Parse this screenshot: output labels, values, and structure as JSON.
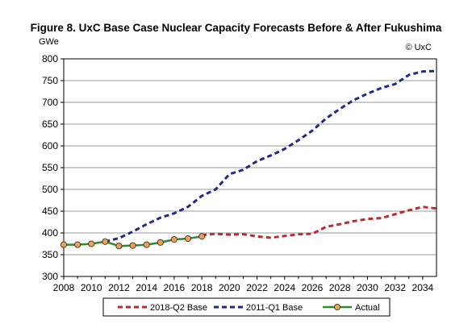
{
  "figure": {
    "title": "Figure 8. UxC Base Case Nuclear Capacity Forecasts Before & After Fukushima"
  },
  "chart_data": {
    "type": "line",
    "title": "Figure 8. UxC Base Case Nuclear Capacity Forecasts Before & After Fukushima",
    "ylabel": "GWe",
    "xlabel": "",
    "annotation": "© UxC",
    "xlim": [
      2008,
      2035
    ],
    "ylim": [
      300,
      800
    ],
    "x_ticks": [
      "2008",
      "2010",
      "2012",
      "2014",
      "2016",
      "2018",
      "2020",
      "2022",
      "2024",
      "2026",
      "2028",
      "2030",
      "2032",
      "2034"
    ],
    "y_ticks": [
      "300",
      "350",
      "400",
      "450",
      "500",
      "550",
      "600",
      "650",
      "700",
      "750",
      "800"
    ],
    "grid": "horizontal",
    "legend_position": "bottom",
    "series": [
      {
        "name": "2018-Q2 Base",
        "color": "#c0282d",
        "style": "dashed",
        "points": [
          [
            2018,
            395
          ],
          [
            2019,
            398
          ],
          [
            2020,
            396
          ],
          [
            2021,
            397
          ],
          [
            2022,
            392
          ],
          [
            2023,
            389
          ],
          [
            2024,
            393
          ],
          [
            2025,
            397
          ],
          [
            2026,
            398
          ],
          [
            2027,
            414
          ],
          [
            2028,
            420
          ],
          [
            2029,
            427
          ],
          [
            2030,
            432
          ],
          [
            2031,
            434
          ],
          [
            2032,
            443
          ],
          [
            2033,
            452
          ],
          [
            2034,
            460
          ],
          [
            2035,
            456
          ]
        ]
      },
      {
        "name": "2011-Q1 Base",
        "color": "#1f2a8a",
        "style": "dashed",
        "points": [
          [
            2011,
            380
          ],
          [
            2012,
            388
          ],
          [
            2013,
            403
          ],
          [
            2014,
            420
          ],
          [
            2015,
            435
          ],
          [
            2016,
            445
          ],
          [
            2017,
            460
          ],
          [
            2018,
            485
          ],
          [
            2019,
            500
          ],
          [
            2020,
            535
          ],
          [
            2021,
            545
          ],
          [
            2022,
            565
          ],
          [
            2023,
            578
          ],
          [
            2024,
            593
          ],
          [
            2025,
            613
          ],
          [
            2026,
            635
          ],
          [
            2027,
            663
          ],
          [
            2028,
            685
          ],
          [
            2029,
            705
          ],
          [
            2030,
            720
          ],
          [
            2031,
            733
          ],
          [
            2032,
            742
          ],
          [
            2033,
            763
          ],
          [
            2034,
            771
          ],
          [
            2035,
            772
          ]
        ]
      },
      {
        "name": "Actual",
        "color": "#2e8b2e",
        "marker_color": "#f0a050",
        "style": "solid",
        "points": [
          [
            2008,
            373
          ],
          [
            2009,
            373
          ],
          [
            2010,
            375
          ],
          [
            2011,
            380
          ],
          [
            2012,
            370
          ],
          [
            2013,
            371
          ],
          [
            2014,
            373
          ],
          [
            2015,
            378
          ],
          [
            2016,
            385
          ],
          [
            2017,
            387
          ],
          [
            2018,
            392
          ]
        ]
      }
    ]
  }
}
